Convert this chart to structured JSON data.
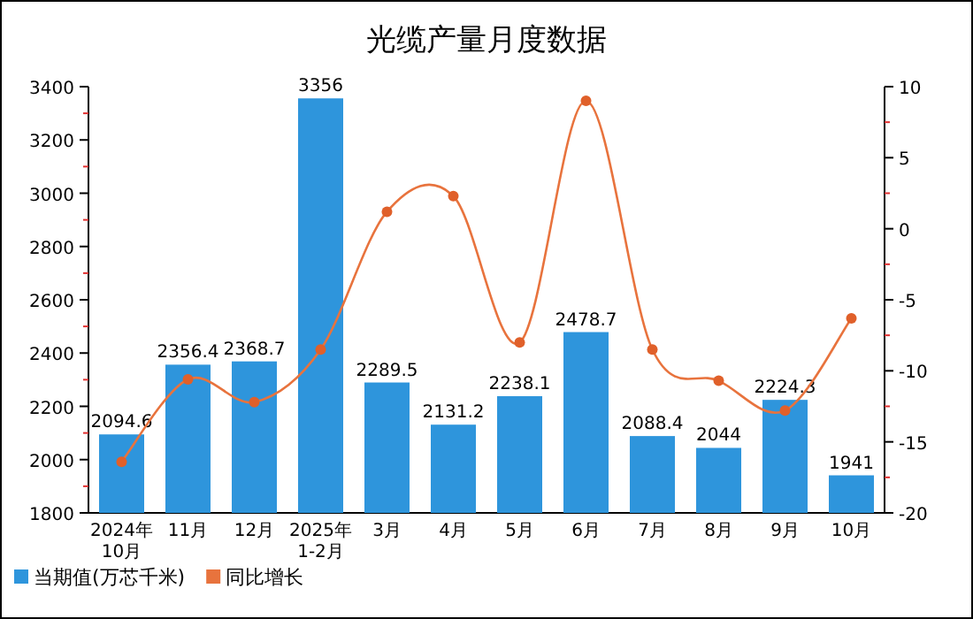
{
  "chart_data": {
    "type": "bar",
    "title": "光缆产量月度数据",
    "categories": [
      "2024年\n10月",
      "11月",
      "12月",
      "2025年\n1-2月",
      "3月",
      "4月",
      "5月",
      "6月",
      "7月",
      "8月",
      "9月",
      "10月"
    ],
    "series": [
      {
        "name": "当期值(万芯千米)",
        "color": "#2e95dc",
        "values": [
          2094.6,
          2356.4,
          2368.7,
          3356,
          2289.5,
          2131.2,
          2238.1,
          2478.7,
          2088.4,
          2044,
          2224.3,
          1941
        ],
        "value_labels": [
          "2094.6",
          "2356.4",
          "2368.7",
          "3356",
          "2289.5",
          "2131.2",
          "2238.1",
          "2478.7",
          "2088.4",
          "2044",
          "2224.3",
          "1941"
        ]
      },
      {
        "name": "同比增长",
        "type": "line",
        "axis": "y2",
        "color": "#e8733d",
        "marker": "circle",
        "values": [
          -16.4,
          -10.6,
          -12.2,
          -8.5,
          1.2,
          2.3,
          -8.0,
          9.0,
          -8.5,
          -10.7,
          -12.8,
          -6.3
        ]
      }
    ],
    "ylim": [
      1800,
      3400
    ],
    "yticks": [
      1800,
      {
        "value": 1900,
        "label": null
      },
      2000,
      {
        "value": 2100,
        "label": null
      },
      2200,
      {
        "value": 2300,
        "label": null
      },
      2400,
      {
        "value": 2500,
        "label": null
      },
      2600,
      {
        "value": 2700,
        "label": null
      },
      2800,
      {
        "value": 2900,
        "label": null
      },
      3000,
      {
        "value": 3100,
        "label": null
      },
      3200,
      {
        "value": 3300,
        "label": null
      },
      3400
    ],
    "y2lim": [
      -20,
      10
    ],
    "y2ticks": [
      -20,
      {
        "value": -17.5,
        "label": null
      },
      -15,
      {
        "value": -12.5,
        "label": null
      },
      -10,
      {
        "value": -7.5,
        "label": null
      },
      -5,
      {
        "value": -2.5,
        "label": null
      },
      0,
      {
        "value": 2.5,
        "label": null
      },
      5,
      {
        "value": 7.5,
        "label": null
      },
      10
    ],
    "legend": "bottom left"
  }
}
